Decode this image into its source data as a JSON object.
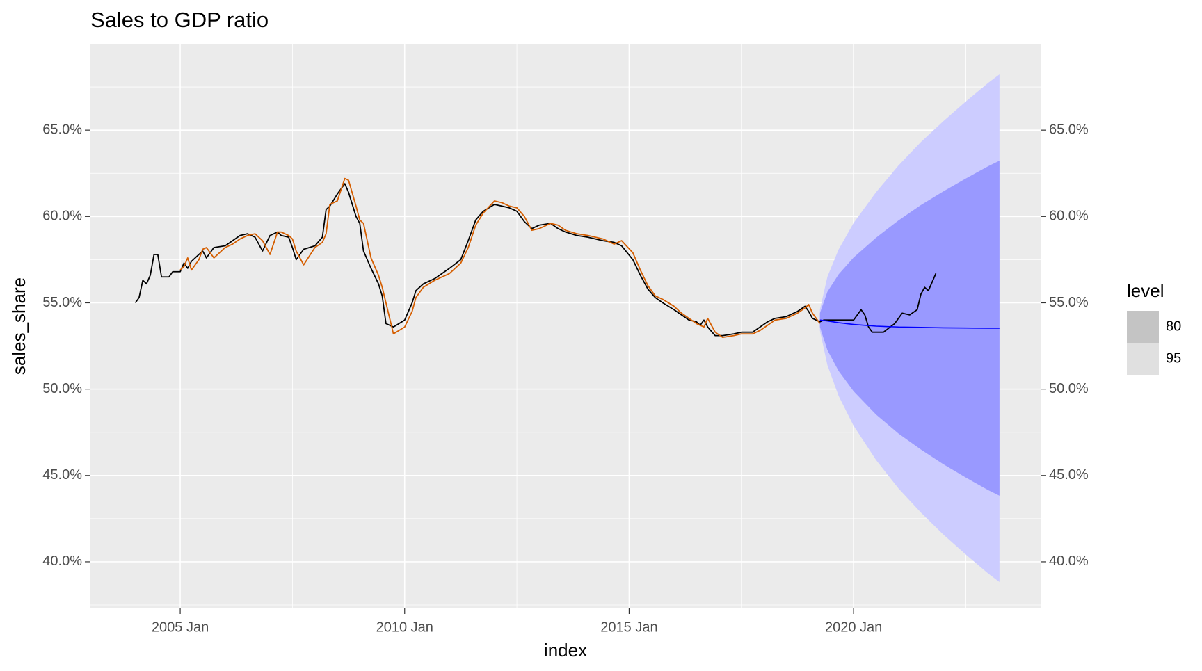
{
  "chart_data": {
    "type": "line",
    "title": "Sales to GDP ratio",
    "x_label": "index",
    "y_label": "sales_share",
    "xlim": [
      "2003 Jan",
      "2024 Mar"
    ],
    "xticks": [
      "2005 Jan",
      "2010 Jan",
      "2015 Jan",
      "2020 Jan"
    ],
    "ylim": [
      37.3,
      70.0
    ],
    "yticks": [
      {
        "value": 40,
        "label": "40.0%"
      },
      {
        "value": 45,
        "label": "45.0%"
      },
      {
        "value": 50,
        "label": "50.0%"
      },
      {
        "value": 55,
        "label": "55.0%"
      },
      {
        "value": 60,
        "label": "60.0%"
      },
      {
        "value": 65,
        "label": "65.0%"
      }
    ],
    "y2lim": [
      37.3,
      70.0
    ],
    "y2ticks": [
      {
        "value": 40,
        "label": "40.0%"
      },
      {
        "value": 45,
        "label": "45.0%"
      },
      {
        "value": 50,
        "label": "50.0%"
      },
      {
        "value": 55,
        "label": "55.0%"
      },
      {
        "value": 60,
        "label": "60.0%"
      },
      {
        "value": 65,
        "label": "65.0%"
      }
    ],
    "grid": true,
    "x": [
      "2004 Jan",
      "2004 Feb",
      "2004 Mar",
      "2004 Apr",
      "2004 May",
      "2004 Jun",
      "2004 Jul",
      "2004 Aug",
      "2004 Oct",
      "2004 Nov",
      "2005 Jan",
      "2005 Feb",
      "2005 Mar",
      "2005 Apr",
      "2005 Jun",
      "2005 Jul",
      "2005 Aug",
      "2005 Oct",
      "2006 Jan",
      "2006 Mar",
      "2006 May",
      "2006 Jul",
      "2006 Sep",
      "2006 Nov",
      "2007 Jan",
      "2007 Mar",
      "2007 Apr",
      "2007 Jun",
      "2007 Jul",
      "2007 Aug",
      "2007 Oct",
      "2008 Jan",
      "2008 Mar",
      "2008 Apr",
      "2008 May",
      "2008 Jul",
      "2008 Sep",
      "2008 Oct",
      "2008 Dec",
      "2009 Jan",
      "2009 Feb",
      "2009 Apr",
      "2009 Jun",
      "2009 Jul",
      "2009 Aug",
      "2009 Oct",
      "2010 Jan",
      "2010 Mar",
      "2010 Apr",
      "2010 Jun",
      "2010 Sep",
      "2011 Jan",
      "2011 Apr",
      "2011 Jun",
      "2011 Aug",
      "2011 Oct",
      "2012 Jan",
      "2012 Mar",
      "2012 May",
      "2012 Jul",
      "2012 Sep",
      "2012 Nov",
      "2013 Jan",
      "2013 Apr",
      "2013 Jun",
      "2013 Aug",
      "2013 Nov",
      "2014 Feb",
      "2014 Jun",
      "2014 Sep",
      "2014 Nov",
      "2015 Feb",
      "2015 Apr",
      "2015 Jun",
      "2015 Aug",
      "2015 Oct",
      "2016 Jan",
      "2016 Mar",
      "2016 May",
      "2016 Jul",
      "2016 Aug",
      "2016 Sep",
      "2016 Oct",
      "2016 Dec",
      "2017 Feb",
      "2017 May",
      "2017 Jul",
      "2017 Oct",
      "2017 Dec",
      "2018 Feb",
      "2018 Apr",
      "2018 Jul",
      "2018 Oct",
      "2018 Dec",
      "2019 Jan",
      "2019 Feb",
      "2019 Apr",
      "2019 May",
      "2019 Aug",
      "2019 Oct",
      "2020 Jan",
      "2020 Feb",
      "2020 Mar",
      "2020 Apr",
      "2020 May",
      "2020 Jun",
      "2020 Sep",
      "2020 Dec",
      "2021 Feb",
      "2021 Apr",
      "2021 Jun",
      "2021 Jul",
      "2021 Aug",
      "2021 Sep",
      "2021 Nov"
    ],
    "series": [
      {
        "color": "#000000",
        "values": [
          55.0,
          55.3,
          56.3,
          56.1,
          56.6,
          57.8,
          57.8,
          56.5,
          56.5,
          56.8,
          56.8,
          57.3,
          57.0,
          57.4,
          57.8,
          58.0,
          57.6,
          58.2,
          58.3,
          58.6,
          58.9,
          59.0,
          58.8,
          58.0,
          58.9,
          59.1,
          58.9,
          58.8,
          58.2,
          57.5,
          58.1,
          58.3,
          58.8,
          60.4,
          60.6,
          61.3,
          61.9,
          61.4,
          60.0,
          59.6,
          58.0,
          57.0,
          56.1,
          55.4,
          53.8,
          53.6,
          54.0,
          55.0,
          55.7,
          56.1,
          56.4,
          57.0,
          57.5,
          58.6,
          59.8,
          60.3,
          60.7,
          60.6,
          60.5,
          60.3,
          59.7,
          59.3,
          59.5,
          59.6,
          59.3,
          59.1,
          58.9,
          58.8,
          58.6,
          58.5,
          58.3,
          57.5,
          56.6,
          55.8,
          55.3,
          55.0,
          54.6,
          54.3,
          54.0,
          53.9,
          53.7,
          54.0,
          53.6,
          53.1,
          53.1,
          53.2,
          53.3,
          53.3,
          53.6,
          53.9,
          54.1,
          54.2,
          54.5,
          54.8,
          54.5,
          54.1,
          53.9,
          54.0,
          54.0,
          54.0,
          54.0,
          54.3,
          54.6,
          54.3,
          53.6,
          53.3,
          53.3,
          53.8,
          54.4,
          54.3,
          54.6,
          55.5,
          55.9,
          55.7,
          56.7
        ]
      },
      {
        "color": "#d55e00",
        "values": [
          null,
          null,
          null,
          null,
          null,
          null,
          null,
          null,
          null,
          null,
          56.9,
          57.1,
          57.6,
          56.9,
          57.5,
          58.1,
          58.2,
          57.6,
          58.2,
          58.4,
          58.7,
          58.9,
          59.0,
          58.6,
          57.8,
          59.1,
          59.1,
          58.9,
          58.7,
          58.0,
          57.2,
          58.2,
          58.5,
          59.0,
          60.7,
          60.9,
          62.2,
          62.1,
          60.6,
          59.8,
          59.6,
          57.6,
          56.6,
          55.9,
          55.0,
          53.2,
          53.6,
          54.5,
          55.3,
          55.9,
          56.3,
          56.7,
          57.3,
          58.2,
          59.5,
          60.2,
          60.9,
          60.8,
          60.6,
          60.5,
          60.0,
          59.2,
          59.3,
          59.6,
          59.5,
          59.2,
          59.0,
          58.9,
          58.7,
          58.4,
          58.6,
          57.9,
          56.9,
          56.0,
          55.4,
          55.2,
          54.8,
          54.4,
          54.1,
          53.8,
          53.7,
          53.6,
          54.1,
          53.3,
          53.0,
          53.1,
          53.2,
          53.2,
          53.4,
          53.7,
          54.0,
          54.1,
          54.4,
          54.7,
          54.9,
          54.4,
          53.8,
          null,
          null,
          null,
          null,
          null,
          null,
          null,
          null,
          null,
          null,
          null,
          null,
          null,
          null,
          null,
          null,
          null,
          null
        ]
      }
    ],
    "forecast": {
      "x": [
        "2019 Apr",
        "2019 Jun",
        "2019 Sep",
        "2020 Jan",
        "2020 Jul",
        "2021 Jan",
        "2021 Jul",
        "2022 Jan",
        "2022 Jul",
        "2023 Jan",
        "2023 Apr"
      ],
      "color": "#0000ff",
      "values": [
        54.0,
        53.95,
        53.85,
        53.75,
        53.65,
        53.6,
        53.58,
        53.55,
        53.54,
        53.53,
        53.53
      ],
      "intervals": [
        {
          "level": 95,
          "color": "#ccccff",
          "legend_color": "#e0e0e0",
          "lower": [
            53.4,
            51.39,
            49.61,
            47.88,
            45.9,
            44.25,
            42.85,
            41.58,
            40.42,
            39.32,
            38.83
          ],
          "upper": [
            54.6,
            56.51,
            58.09,
            59.62,
            61.4,
            62.95,
            64.31,
            65.52,
            66.66,
            67.74,
            68.23
          ]
        },
        {
          "level": 80,
          "color": "#9999ff",
          "legend_color": "#c4c4c4",
          "lower": [
            53.6,
            52.26,
            51.05,
            49.88,
            48.53,
            47.43,
            46.5,
            45.65,
            44.88,
            44.15,
            43.83
          ],
          "upper": [
            54.4,
            55.64,
            56.65,
            57.62,
            58.77,
            59.77,
            60.66,
            61.45,
            62.2,
            62.91,
            63.23
          ]
        }
      ]
    },
    "legend": {
      "title": "level",
      "order": [
        1,
        0
      ]
    }
  }
}
